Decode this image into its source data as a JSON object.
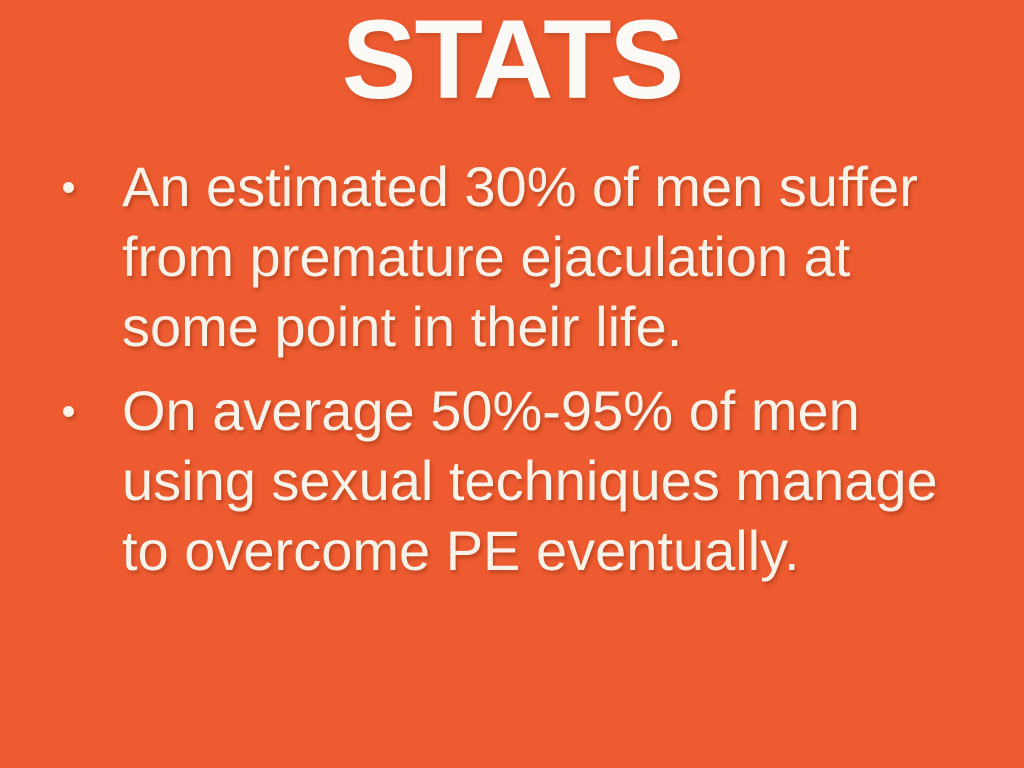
{
  "slide": {
    "title": "STATS",
    "bullets": [
      "An estimated 30% of men suffer from premature ejaculation at some point in their life.",
      "On average 50%-95% of men using sexual techniques manage to overcome PE eventually."
    ],
    "colors": {
      "background": "#EE5B30",
      "title_text": "#FCFAF6",
      "body_text": "#F8F2E9",
      "text_shadow": "rgba(150, 52, 20, 0.5)"
    }
  }
}
